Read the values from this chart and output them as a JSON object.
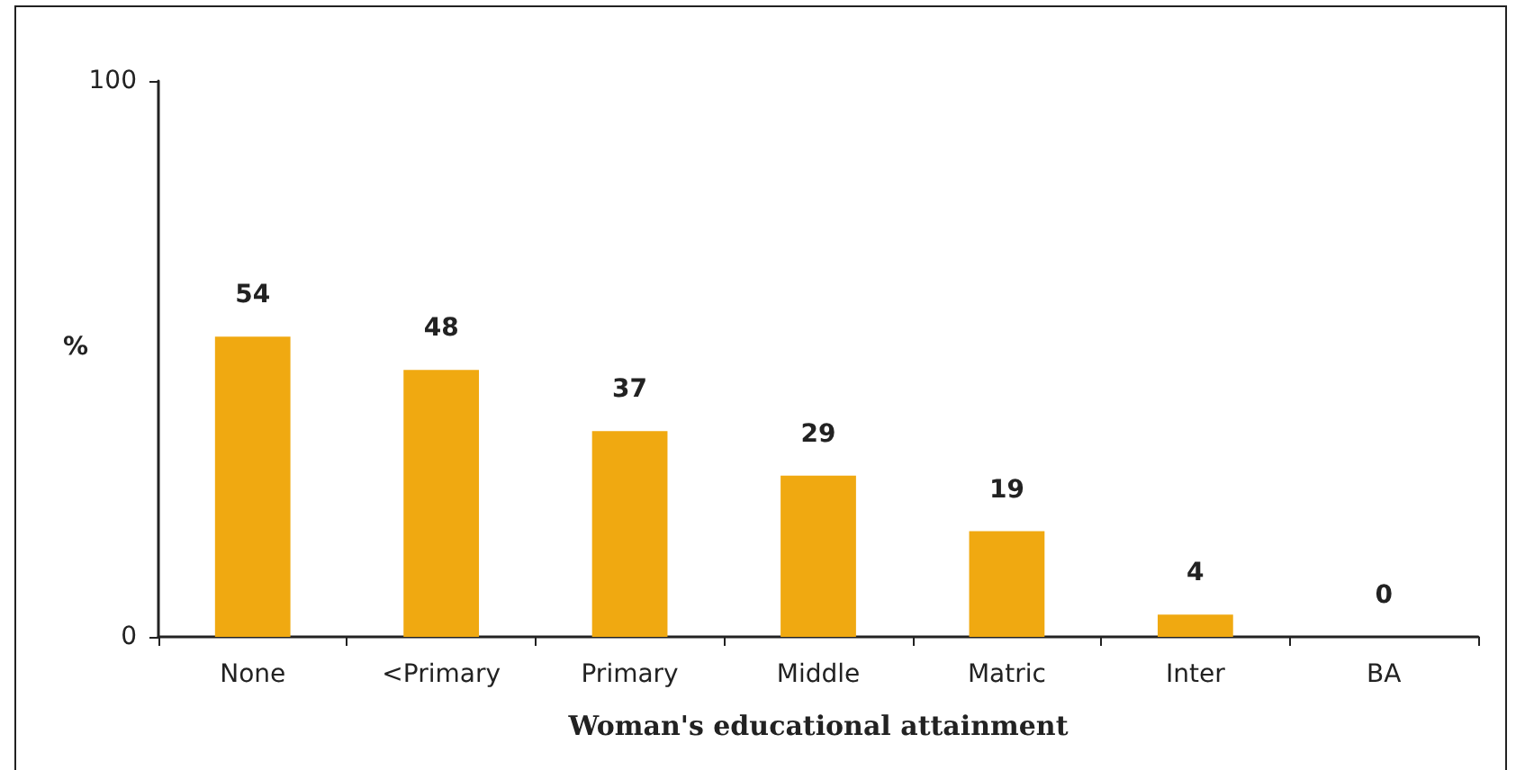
{
  "chart_data": {
    "type": "bar",
    "xlabel": "Woman's educational attainment",
    "ylabel": "%",
    "categories": [
      "None",
      "<Primary",
      "Primary",
      "Middle",
      "Matric",
      "Inter",
      "BA"
    ],
    "values": [
      54,
      48,
      37,
      29,
      19,
      4,
      0
    ],
    "color": "#f0a911",
    "ylim": [
      0,
      100
    ],
    "yticks": [
      0,
      100
    ],
    "grid": false,
    "data_labels": true
  }
}
